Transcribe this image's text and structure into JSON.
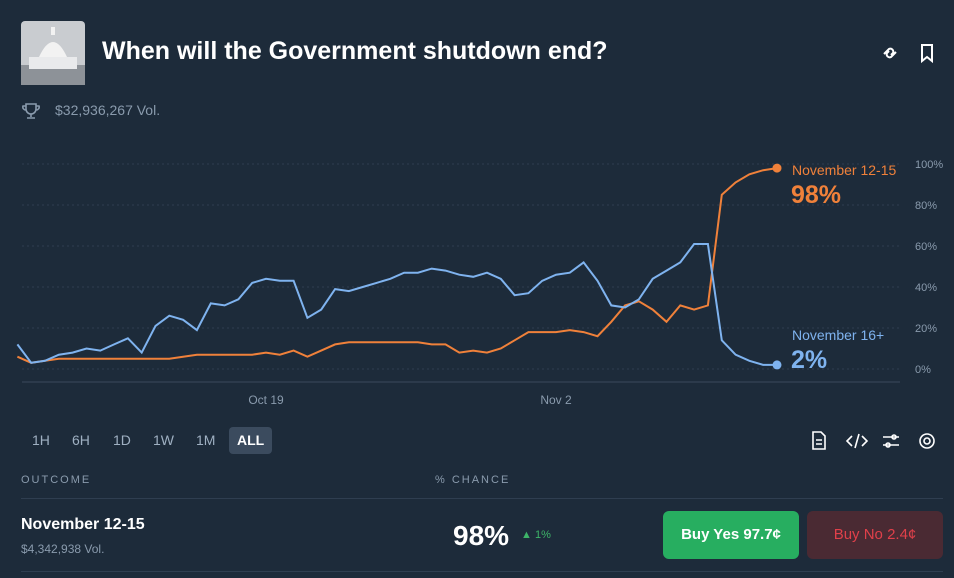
{
  "header": {
    "title": "When will the Government shutdown end?",
    "volume": "$32,936,267 Vol."
  },
  "chart_data": {
    "type": "line",
    "categories": [
      null,
      null,
      null,
      null,
      null,
      null,
      null,
      null,
      null,
      null,
      null,
      null,
      null,
      null,
      null,
      null,
      null,
      null,
      "Oct 19",
      null,
      null,
      null,
      null,
      null,
      null,
      null,
      null,
      null,
      null,
      null,
      null,
      null,
      null,
      null,
      null,
      null,
      null,
      null,
      null,
      "Nov 2",
      null,
      null,
      null,
      null,
      null,
      null,
      null,
      null,
      null,
      null,
      null,
      null,
      null,
      null,
      null,
      null
    ],
    "series": [
      {
        "name": "November 12-15",
        "color": "#f0813a",
        "current": "98%",
        "values": [
          6,
          3,
          4,
          5,
          5,
          5,
          5,
          5,
          5,
          5,
          5,
          5,
          6,
          7,
          7,
          7,
          7,
          7,
          8,
          7,
          9,
          6,
          9,
          12,
          13,
          13,
          13,
          13,
          13,
          13,
          12,
          12,
          8,
          9,
          8,
          10,
          14,
          18,
          18,
          18,
          19,
          18,
          16,
          23,
          31,
          33,
          29,
          23,
          31,
          29,
          31,
          85,
          91,
          95,
          97,
          98
        ]
      },
      {
        "name": "November 16+",
        "color": "#7fb3ef",
        "current": "2%",
        "values": [
          12,
          3,
          4,
          7,
          8,
          10,
          9,
          12,
          15,
          8,
          21,
          26,
          24,
          19,
          32,
          31,
          34,
          42,
          44,
          43,
          43,
          25,
          29,
          39,
          38,
          40,
          42,
          44,
          47,
          47,
          49,
          48,
          46,
          45,
          47,
          44,
          36,
          37,
          43,
          46,
          47,
          52,
          43,
          31,
          30,
          34,
          44,
          48,
          52,
          61,
          61,
          14,
          7,
          4,
          2,
          2
        ]
      }
    ],
    "ylim": [
      0,
      100
    ],
    "yticks": [
      {
        "value": 0,
        "label": "0%"
      },
      {
        "value": 20,
        "label": "20%"
      },
      {
        "value": 40,
        "label": "40%"
      },
      {
        "value": 60,
        "label": "60%"
      },
      {
        "value": 80,
        "label": "80%"
      },
      {
        "value": 100,
        "label": "100%"
      }
    ],
    "grid": true
  },
  "ranges": [
    "1H",
    "6H",
    "1D",
    "1W",
    "1M",
    "ALL"
  ],
  "active_range": 5,
  "table": {
    "columns": [
      "OUTCOME",
      "% CHANCE"
    ],
    "rows": [
      {
        "name": "November 12-15",
        "volume": "$4,342,938 Vol.",
        "chance": "98%",
        "change": "1%",
        "buy_yes": "Buy Yes",
        "yes_price": "97.7¢",
        "buy_no": "Buy No",
        "no_price": "2.4¢"
      }
    ]
  }
}
